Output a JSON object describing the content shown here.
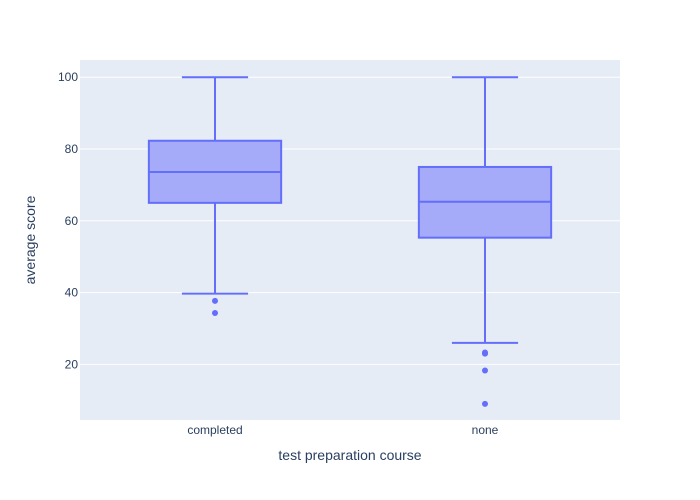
{
  "chart_data": {
    "type": "box",
    "title": "",
    "xlabel": "test preparation course",
    "ylabel": "average score",
    "ylim": [
      4.5,
      104.8
    ],
    "yticks": [
      20,
      40,
      60,
      80,
      100
    ],
    "grid": true,
    "legend": "none",
    "colors": {
      "plot_bg": "#e5ecf6",
      "grid": "#ffffff",
      "box_line": "#636efa",
      "box_fill": "#a5aaf9",
      "text": "#2a3f5f"
    },
    "categories": [
      "completed",
      "none"
    ],
    "boxes": [
      {
        "category": "completed",
        "min": 39.7,
        "q1": 65.0,
        "median": 73.6,
        "q3": 82.3,
        "max": 100,
        "outliers": [
          37.7,
          34.3
        ]
      },
      {
        "category": "none",
        "min": 26.0,
        "q1": 55.3,
        "median": 65.3,
        "q3": 75.0,
        "max": 100,
        "outliers": [
          23.3,
          23.0,
          18.3,
          9.0
        ]
      }
    ]
  }
}
